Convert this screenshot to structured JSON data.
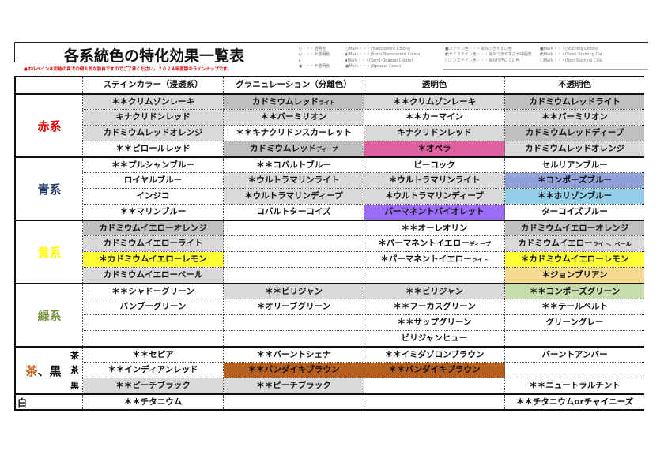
{
  "header": {
    "title": "各系統色の特化効果一覧表",
    "note": "●ホルベイン水彩絵の具での個人的な独自ですのでご了承ください。２０２４年度版のラインナップです。"
  },
  "legend": {
    "transparency_jp": [
      "○・・・透明色",
      "◐・・・半透明色",
      "◖",
      "●・・・不透明色"
    ],
    "transparency_en": [
      "○Mark・・・(Transparent Colors)",
      "◐Mark・・・(Semi-Transparent Colors)",
      "◖Mark・・・(Semi-Opaque Colors)",
      "●Mark・・・(Opaque Colors)"
    ],
    "staining_jp": [
      "■ステイン色・・・染みつきやすい色",
      "◩セミステイン色・・・染みつきやすさが中程度",
      "□ノンステイン色・・・染み付きにくい色"
    ],
    "staining_en": [
      "■Mark・・・(Staining Colors)",
      "◩Mark・・・(Semi-Staining Col",
      "□Mark・・・(Non-Staining Colo"
    ]
  },
  "columns": [
    "",
    "ステインカラー（浸透系）",
    "グラニュレーション（分離色）",
    "透明色",
    "不透明色"
  ],
  "colors": {
    "light": "#d9d9d9",
    "dark": "#bfbfbf",
    "white": "#ffffff",
    "pink": "#df62a0",
    "purple": "#9a6cf5",
    "periwinkle": "#8fa1d8",
    "sky": "#93cfe9",
    "yellow": "#ffff33",
    "tan": "#f7d991",
    "mint": "#c6dcaa",
    "brown": "#b55f1f"
  },
  "groups": [
    {
      "label": "赤系",
      "label_color": "#e00000",
      "rows": [
        {
          "cells": [
            {
              "text": "＊＊クリムゾンレーキ",
              "bg": "light"
            },
            {
              "text": "カドミウムレッド",
              "sub": "ライト",
              "bg": "dark"
            },
            {
              "text": "＊＊クリムゾンレーキ",
              "bg": "light"
            },
            {
              "text": "カドミウムレッドライト",
              "bg": "dark"
            }
          ]
        },
        {
          "cells": [
            {
              "text": "キナクリドンレッド",
              "bg": "light"
            },
            {
              "text": "＊＊バーミリオン",
              "bg": "light"
            },
            {
              "text": "＊＊カーマイン",
              "bg": "white"
            },
            {
              "text": "＊＊バーミリオン",
              "bg": "light"
            }
          ]
        },
        {
          "cells": [
            {
              "text": "カドミウムレッドオレンジ",
              "bg": "light"
            },
            {
              "text": "＊＊キナクリドンスカーレット",
              "bg": "white"
            },
            {
              "text": "キナクリドンレッド",
              "bg": "light"
            },
            {
              "text": "カドミウムレッドディープ",
              "bg": "dark"
            }
          ]
        },
        {
          "cells": [
            {
              "text": "＊＊ピロールレッド",
              "bg": "white"
            },
            {
              "text": "カドミウムレッド",
              "sub": "ディープ",
              "bg": "dark"
            },
            {
              "text": "＊オペラ",
              "bg": "pink"
            },
            {
              "text": "カドミウムレッドオレンジ",
              "bg": "light"
            }
          ]
        }
      ]
    },
    {
      "label": "青系",
      "label_color": "#1f3864",
      "rows": [
        {
          "cells": [
            {
              "text": "＊＊プルシャンブルー",
              "bg": "white"
            },
            {
              "text": "＊＊コバルトブルー",
              "bg": "white"
            },
            {
              "text": "ピーコック",
              "bg": "white"
            },
            {
              "text": "セルリアンブルー",
              "bg": "white"
            }
          ]
        },
        {
          "cells": [
            {
              "text": "ロイヤルブルー",
              "bg": "white"
            },
            {
              "text": "＊ウルトラマリンライト",
              "bg": "light"
            },
            {
              "text": "＊ウルトラマリンライト",
              "bg": "light"
            },
            {
              "text": "＊コンポーズブルー",
              "bg": "periwinkle"
            }
          ]
        },
        {
          "cells": [
            {
              "text": "インジコ",
              "bg": "white"
            },
            {
              "text": "＊ウルトラマリンディープ",
              "bg": "light"
            },
            {
              "text": "＊ウルトラマリンディープ",
              "bg": "light"
            },
            {
              "text": "＊＊ホリゾンブルー",
              "bg": "sky"
            }
          ]
        },
        {
          "cells": [
            {
              "text": "＊＊マリンブルー",
              "bg": "white"
            },
            {
              "text": "コバルトターコイズ",
              "bg": "white"
            },
            {
              "text": "パーマネントバイオレット",
              "bg": "purple"
            },
            {
              "text": "ターコイズブルー",
              "bg": "white"
            }
          ]
        }
      ]
    },
    {
      "label": "黄系",
      "label_color": "#ffff00",
      "rows": [
        {
          "cells": [
            {
              "text": "カドミウムイエローオレンジ",
              "bg": "dark"
            },
            {
              "text": "",
              "bg": "white"
            },
            {
              "text": "＊＊オーレオリン",
              "bg": "white"
            },
            {
              "text": "カドミウムイエローオレンジ",
              "bg": "dark"
            }
          ]
        },
        {
          "cells": [
            {
              "text": "カドミウムイエローライト",
              "bg": "light"
            },
            {
              "text": "",
              "bg": "white"
            },
            {
              "text": "＊パーマネントイエロー",
              "sub": "ディープ",
              "bg": "white"
            },
            {
              "text": "カドミウムイエロー",
              "sub": "ライト、ペール",
              "bg": "light"
            }
          ]
        },
        {
          "cells": [
            {
              "text": "＊カドミウムイエローレモン",
              "bg": "yellow"
            },
            {
              "text": "",
              "bg": "white"
            },
            {
              "text": "＊パーマネントイエロー",
              "sub": "ライト",
              "bg": "white"
            },
            {
              "text": "＊カドミウムイエローレモン",
              "bg": "yellow"
            }
          ]
        },
        {
          "cells": [
            {
              "text": "カドミウムイエローペール",
              "bg": "light"
            },
            {
              "text": "",
              "bg": "white"
            },
            {
              "text": "",
              "bg": "white"
            },
            {
              "text": "＊ジョンブリアン",
              "bg": "tan"
            }
          ]
        }
      ]
    },
    {
      "label": "緑系",
      "label_color": "#76933c",
      "rows": [
        {
          "cells": [
            {
              "text": "＊＊シャドーグリーン",
              "bg": "white"
            },
            {
              "text": "＊＊ビリジャン",
              "bg": "light"
            },
            {
              "text": "＊＊ビリジャン",
              "bg": "light"
            },
            {
              "text": "＊＊コンポーズグリーン",
              "bg": "mint"
            }
          ]
        },
        {
          "cells": [
            {
              "text": "バンブーグリーン",
              "bg": "white"
            },
            {
              "text": "＊オリーブグリーン",
              "bg": "white"
            },
            {
              "text": "＊＊フーカスグリーン",
              "bg": "white"
            },
            {
              "text": "＊＊テールベルト",
              "bg": "white"
            }
          ]
        },
        {
          "cells": [
            {
              "text": "",
              "bg": "white"
            },
            {
              "text": "",
              "bg": "white"
            },
            {
              "text": "＊＊サップグリーン",
              "bg": "white"
            },
            {
              "text": "グリーングレー",
              "bg": "white"
            }
          ]
        },
        {
          "cells": [
            {
              "text": "",
              "bg": "white"
            },
            {
              "text": "",
              "bg": "white"
            },
            {
              "text": "ビリジャンヒュー",
              "bg": "white"
            },
            {
              "text": "",
              "bg": "white"
            }
          ]
        }
      ]
    },
    {
      "label": "茶、黒",
      "label_color": "#c55a11",
      "label_parts": [
        "茶",
        "、黒"
      ],
      "rows": [
        {
          "sublabel": "茶",
          "cells": [
            {
              "text": "＊＊セピア",
              "bg": "white"
            },
            {
              "text": "＊＊バーントシェナ",
              "bg": "white"
            },
            {
              "text": "＊＊イミダゾロンブラウン",
              "bg": "white"
            },
            {
              "text": "バーントアンバー",
              "bg": "white"
            }
          ]
        },
        {
          "sublabel": "茶",
          "cells": [
            {
              "text": "＊＊インディアンレッド",
              "bg": "white"
            },
            {
              "text": "＊＊バンダイキブラウン",
              "bg": "brown"
            },
            {
              "text": "＊＊バンダイキブラウン",
              "bg": "brown"
            },
            {
              "text": "",
              "bg": "white"
            }
          ]
        },
        {
          "sublabel": "黒",
          "cells": [
            {
              "text": "＊＊ピーチブラック",
              "bg": "light"
            },
            {
              "text": "＊＊ピーチブラック",
              "bg": "light"
            },
            {
              "text": "",
              "bg": "white"
            },
            {
              "text": "＊＊ニュートラルチント",
              "bg": "white"
            }
          ]
        }
      ]
    },
    {
      "label": "白",
      "label_color": "#111111",
      "rows": [
        {
          "cells": [
            {
              "text": "＊＊チタニウム",
              "bg": "white"
            },
            {
              "text": "",
              "bg": "white"
            },
            {
              "text": "",
              "bg": "white"
            },
            {
              "text": "＊＊チタニウムorチャイニーズ",
              "bg": "white"
            }
          ]
        }
      ]
    }
  ]
}
